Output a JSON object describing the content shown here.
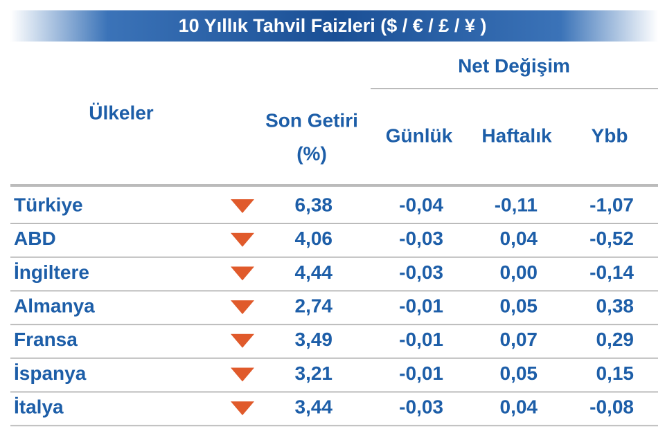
{
  "header": {
    "title": "10 Yıllık Tahvil Faizleri ($ / € / £ / ¥ )"
  },
  "table": {
    "group_header": "Net Değişim",
    "columns": [
      "Ülkeler",
      "Son Getiri",
      "(%)",
      "Günlük",
      "Haftalık",
      "Ybb"
    ],
    "rows": [
      [
        "Türkiye",
        "6,38",
        "-0,04",
        "-0,11",
        "-1,07"
      ],
      [
        "ABD",
        "4,06",
        "-0,03",
        "0,04",
        "-0,52"
      ],
      [
        "İngiltere",
        "4,44",
        "-0,03",
        "0,00",
        "-0,14"
      ],
      [
        "Almanya",
        "2,74",
        "-0,01",
        "0,05",
        "0,38"
      ],
      [
        "Fransa",
        "3,49",
        "-0,01",
        "0,07",
        "0,29"
      ],
      [
        "İspanya",
        "3,21",
        "-0,01",
        "0,05",
        "0,15"
      ],
      [
        "İtalya",
        "3,44",
        "-0,03",
        "0,04",
        "-0,08"
      ]
    ]
  }
}
